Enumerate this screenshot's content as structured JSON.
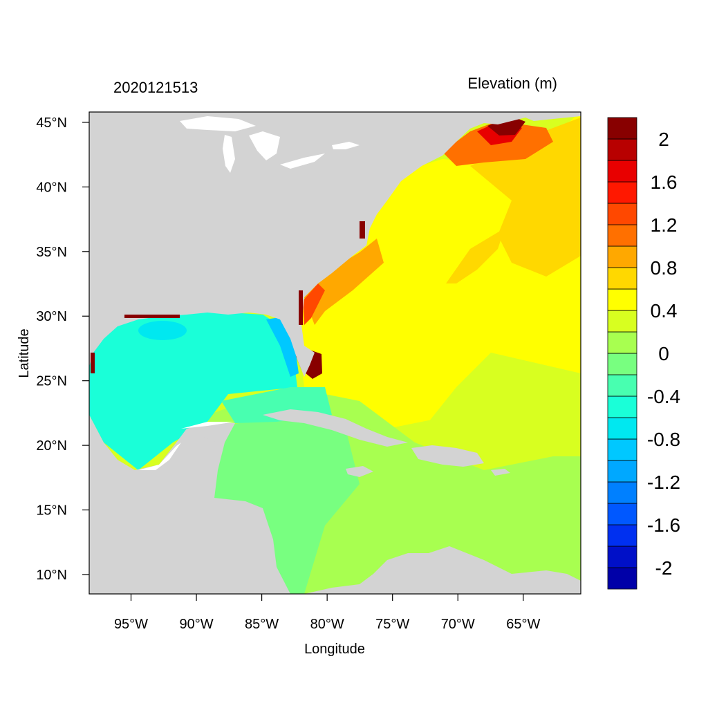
{
  "plot": {
    "left_title": "2020121513",
    "right_title": "Elevation (m)",
    "xlabel": "Longitude",
    "ylabel": "Latitude",
    "x_ticks": [
      {
        "value": -95,
        "label": "95°W"
      },
      {
        "value": -90,
        "label": "90°W"
      },
      {
        "value": -85,
        "label": "85°W"
      },
      {
        "value": -80,
        "label": "80°W"
      },
      {
        "value": -75,
        "label": "75°W"
      },
      {
        "value": -70,
        "label": "70°W"
      },
      {
        "value": -65,
        "label": "65°W"
      }
    ],
    "y_ticks": [
      {
        "value": 45,
        "label": "45°N"
      },
      {
        "value": 40,
        "label": "40°N"
      },
      {
        "value": 35,
        "label": "35°N"
      },
      {
        "value": 30,
        "label": "30°N"
      },
      {
        "value": 25,
        "label": "25°N"
      },
      {
        "value": 20,
        "label": "20°N"
      },
      {
        "value": 15,
        "label": "15°N"
      },
      {
        "value": 10,
        "label": "10°N"
      }
    ],
    "lon_range": [
      -98.2,
      -60.6
    ],
    "lat_range": [
      8.5,
      45.8
    ],
    "land_color": "#d3d3d3",
    "colorbar": {
      "colors": [
        "#0000a8",
        "#0010c8",
        "#0030f0",
        "#0058ff",
        "#0080ff",
        "#00a8ff",
        "#00c8ff",
        "#00e8f0",
        "#1affd8",
        "#48ffb0",
        "#78ff80",
        "#a8ff50",
        "#d8ff20",
        "#ffff00",
        "#ffd800",
        "#ffa800",
        "#ff7000",
        "#ff4800",
        "#ff1800",
        "#e80000",
        "#b80000",
        "#880000"
      ],
      "labels": [
        "2",
        "1.6",
        "1.2",
        "0.8",
        "0.4",
        "0",
        "-0.4",
        "-0.8",
        "-1.2",
        "-1.6",
        "-2"
      ]
    }
  }
}
